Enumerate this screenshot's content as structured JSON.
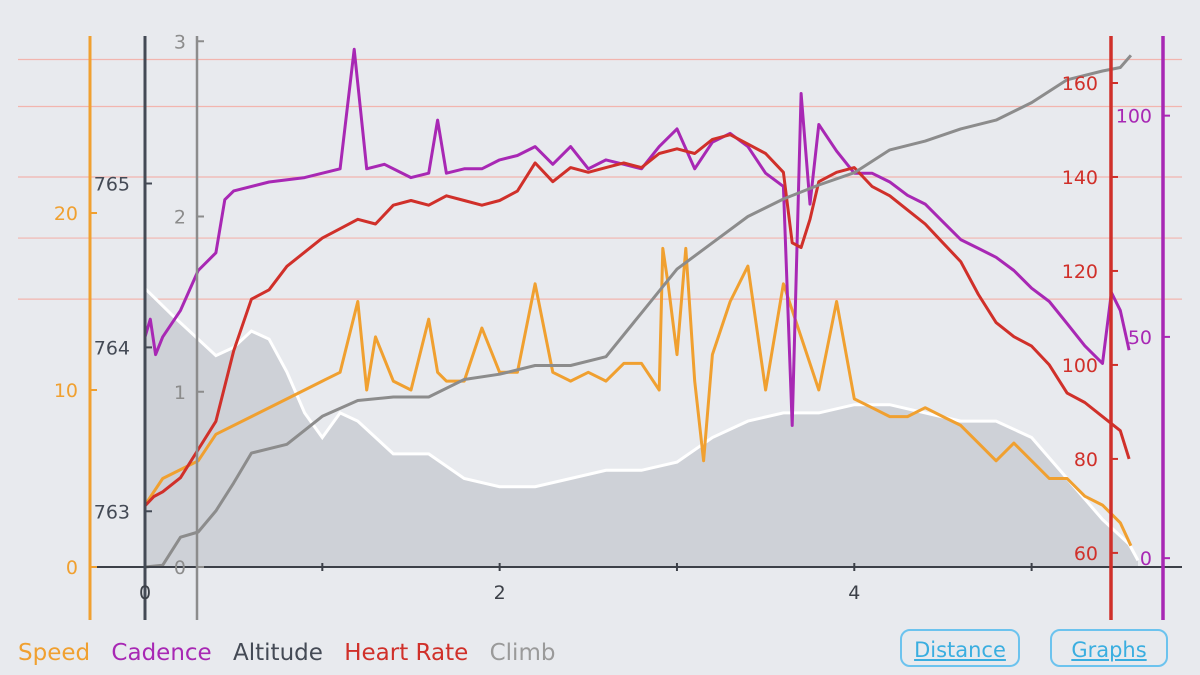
{
  "chart_data": {
    "type": "line",
    "xlabel": "",
    "xlim": [
      0,
      5.6
    ],
    "x_ticks": [
      "0",
      "2",
      "4"
    ],
    "grid": "horizontal",
    "axes": {
      "speed": {
        "min": 0,
        "max": 30,
        "ticks": [
          "0",
          "10",
          "20"
        ],
        "color": "#f0a030"
      },
      "altitude": {
        "min": 762.66,
        "max": 765.9,
        "ticks": [
          "763",
          "764",
          "765"
        ],
        "color": "#444a55"
      },
      "climb": {
        "min": 0,
        "max": 3.03,
        "ticks": [
          "0",
          "1",
          "2",
          "3"
        ],
        "color": "#8c8c8c"
      },
      "heart_rate": {
        "min": 57,
        "max": 170,
        "ticks": [
          "60",
          "80",
          "100",
          "120",
          "140",
          "160"
        ],
        "color": "#d0302a"
      },
      "cadence": {
        "min": -2,
        "max": 118,
        "ticks": [
          "0",
          "50",
          "100"
        ],
        "color": "#a828b4"
      }
    },
    "series": [
      {
        "name": "Altitude",
        "axis": "altitude",
        "color": "#c9ccd2",
        "x": [
          0,
          0.15,
          0.3,
          0.4,
          0.5,
          0.6,
          0.7,
          0.8,
          0.9,
          1.0,
          1.1,
          1.2,
          1.4,
          1.6,
          1.8,
          2.0,
          2.2,
          2.4,
          2.6,
          2.8,
          3.0,
          3.2,
          3.4,
          3.6,
          3.8,
          4.0,
          4.2,
          4.4,
          4.6,
          4.8,
          5.0,
          5.2,
          5.4,
          5.55,
          5.6
        ],
        "values": [
          764.36,
          764.2,
          764.05,
          763.95,
          764.0,
          764.1,
          764.05,
          763.85,
          763.6,
          763.45,
          763.6,
          763.55,
          763.35,
          763.35,
          763.2,
          763.15,
          763.15,
          763.2,
          763.25,
          763.25,
          763.3,
          763.45,
          763.55,
          763.6,
          763.6,
          763.65,
          763.65,
          763.6,
          763.55,
          763.55,
          763.45,
          763.2,
          762.95,
          762.8,
          762.7
        ]
      },
      {
        "name": "Speed",
        "axis": "speed",
        "x": [
          0,
          0.1,
          0.2,
          0.3,
          0.4,
          0.6,
          0.8,
          1.0,
          1.1,
          1.2,
          1.25,
          1.3,
          1.4,
          1.5,
          1.6,
          1.65,
          1.7,
          1.8,
          1.9,
          2.0,
          2.1,
          2.2,
          2.3,
          2.4,
          2.5,
          2.6,
          2.7,
          2.8,
          2.9,
          2.92,
          2.95,
          3.0,
          3.05,
          3.1,
          3.15,
          3.2,
          3.3,
          3.4,
          3.5,
          3.6,
          3.7,
          3.8,
          3.9,
          4.0,
          4.1,
          4.2,
          4.3,
          4.4,
          4.5,
          4.6,
          4.7,
          4.8,
          4.9,
          5.0,
          5.1,
          5.2,
          5.3,
          5.4,
          5.5,
          5.56
        ],
        "values": [
          3.5,
          5,
          5.5,
          6,
          7.5,
          8.5,
          9.5,
          10.5,
          11,
          15,
          10,
          13,
          10.5,
          10,
          14,
          11,
          10.5,
          10.5,
          13.5,
          11,
          11,
          16,
          11,
          10.5,
          11,
          10.5,
          11.5,
          11.5,
          10,
          18,
          16,
          12,
          18,
          10.5,
          6,
          12,
          15,
          17,
          10,
          16,
          13,
          10,
          15,
          9.5,
          9,
          8.5,
          8.5,
          9,
          8.5,
          8,
          7,
          6,
          7,
          6,
          5,
          5,
          4,
          3.5,
          2.5,
          1.2
        ]
      },
      {
        "name": "Cadence",
        "axis": "cadence",
        "x": [
          0,
          0.03,
          0.06,
          0.1,
          0.2,
          0.3,
          0.4,
          0.45,
          0.5,
          0.7,
          0.9,
          1.1,
          1.18,
          1.25,
          1.35,
          1.5,
          1.6,
          1.65,
          1.7,
          1.8,
          1.9,
          2.0,
          2.1,
          2.2,
          2.3,
          2.4,
          2.5,
          2.6,
          2.7,
          2.8,
          2.9,
          3.0,
          3.1,
          3.2,
          3.3,
          3.4,
          3.5,
          3.6,
          3.65,
          3.7,
          3.75,
          3.8,
          3.9,
          4.0,
          4.1,
          4.2,
          4.3,
          4.4,
          4.5,
          4.6,
          4.7,
          4.8,
          4.9,
          5.0,
          5.1,
          5.2,
          5.3,
          5.4,
          5.45,
          5.5,
          5.55
        ],
        "values": [
          50,
          54,
          46,
          50,
          56,
          65,
          69,
          81,
          83,
          85,
          86,
          88,
          115,
          88,
          89,
          86,
          87,
          99,
          87,
          88,
          88,
          90,
          91,
          93,
          89,
          93,
          88,
          90,
          89,
          88,
          93,
          97,
          88,
          94,
          96,
          93,
          87,
          84,
          30,
          105,
          80,
          98,
          92,
          87,
          87,
          85,
          82,
          80,
          76,
          72,
          70,
          68,
          65,
          61,
          58,
          53,
          48,
          44,
          60,
          56,
          47
        ]
      },
      {
        "name": "Heart Rate",
        "axis": "heart_rate",
        "x": [
          0,
          0.05,
          0.1,
          0.2,
          0.3,
          0.4,
          0.5,
          0.6,
          0.7,
          0.8,
          0.9,
          1.0,
          1.1,
          1.2,
          1.3,
          1.4,
          1.5,
          1.6,
          1.7,
          1.8,
          1.9,
          2.0,
          2.1,
          2.2,
          2.3,
          2.4,
          2.5,
          2.6,
          2.7,
          2.8,
          2.9,
          3.0,
          3.1,
          3.2,
          3.3,
          3.4,
          3.5,
          3.6,
          3.65,
          3.7,
          3.75,
          3.8,
          3.9,
          4.0,
          4.1,
          4.2,
          4.3,
          4.4,
          4.5,
          4.6,
          4.7,
          4.8,
          4.9,
          5.0,
          5.1,
          5.2,
          5.3,
          5.4,
          5.5,
          5.55
        ],
        "values": [
          70,
          72,
          73,
          76,
          82,
          88,
          103,
          114,
          116,
          121,
          124,
          127,
          129,
          131,
          130,
          134,
          135,
          134,
          136,
          135,
          134,
          135,
          137,
          143,
          139,
          142,
          141,
          142,
          143,
          142,
          145,
          146,
          145,
          148,
          149,
          147,
          145,
          141,
          126,
          125,
          131,
          139,
          141,
          142,
          138,
          136,
          133,
          130,
          126,
          122,
          115,
          109,
          106,
          104,
          100,
          94,
          92,
          89,
          86,
          80
        ]
      },
      {
        "name": "Climb",
        "axis": "climb",
        "x": [
          0,
          0.1,
          0.2,
          0.3,
          0.4,
          0.5,
          0.6,
          0.8,
          1.0,
          1.2,
          1.4,
          1.6,
          1.8,
          2.0,
          2.2,
          2.4,
          2.6,
          2.8,
          3.0,
          3.2,
          3.4,
          3.6,
          3.8,
          4.0,
          4.2,
          4.4,
          4.6,
          4.8,
          5.0,
          5.2,
          5.4,
          5.5,
          5.56
        ],
        "values": [
          0,
          0.01,
          0.17,
          0.2,
          0.32,
          0.48,
          0.65,
          0.7,
          0.86,
          0.95,
          0.97,
          0.97,
          1.07,
          1.1,
          1.15,
          1.15,
          1.2,
          1.45,
          1.7,
          1.85,
          2.0,
          2.1,
          2.18,
          2.25,
          2.38,
          2.43,
          2.5,
          2.55,
          2.65,
          2.78,
          2.83,
          2.85,
          2.92
        ]
      }
    ]
  },
  "legend": {
    "speed": "Speed",
    "cadence": "Cadence",
    "altitude": "Altitude",
    "heart_rate": "Heart Rate",
    "climb": "Climb"
  },
  "buttons": {
    "distance": "Distance",
    "graphs": "Graphs"
  }
}
